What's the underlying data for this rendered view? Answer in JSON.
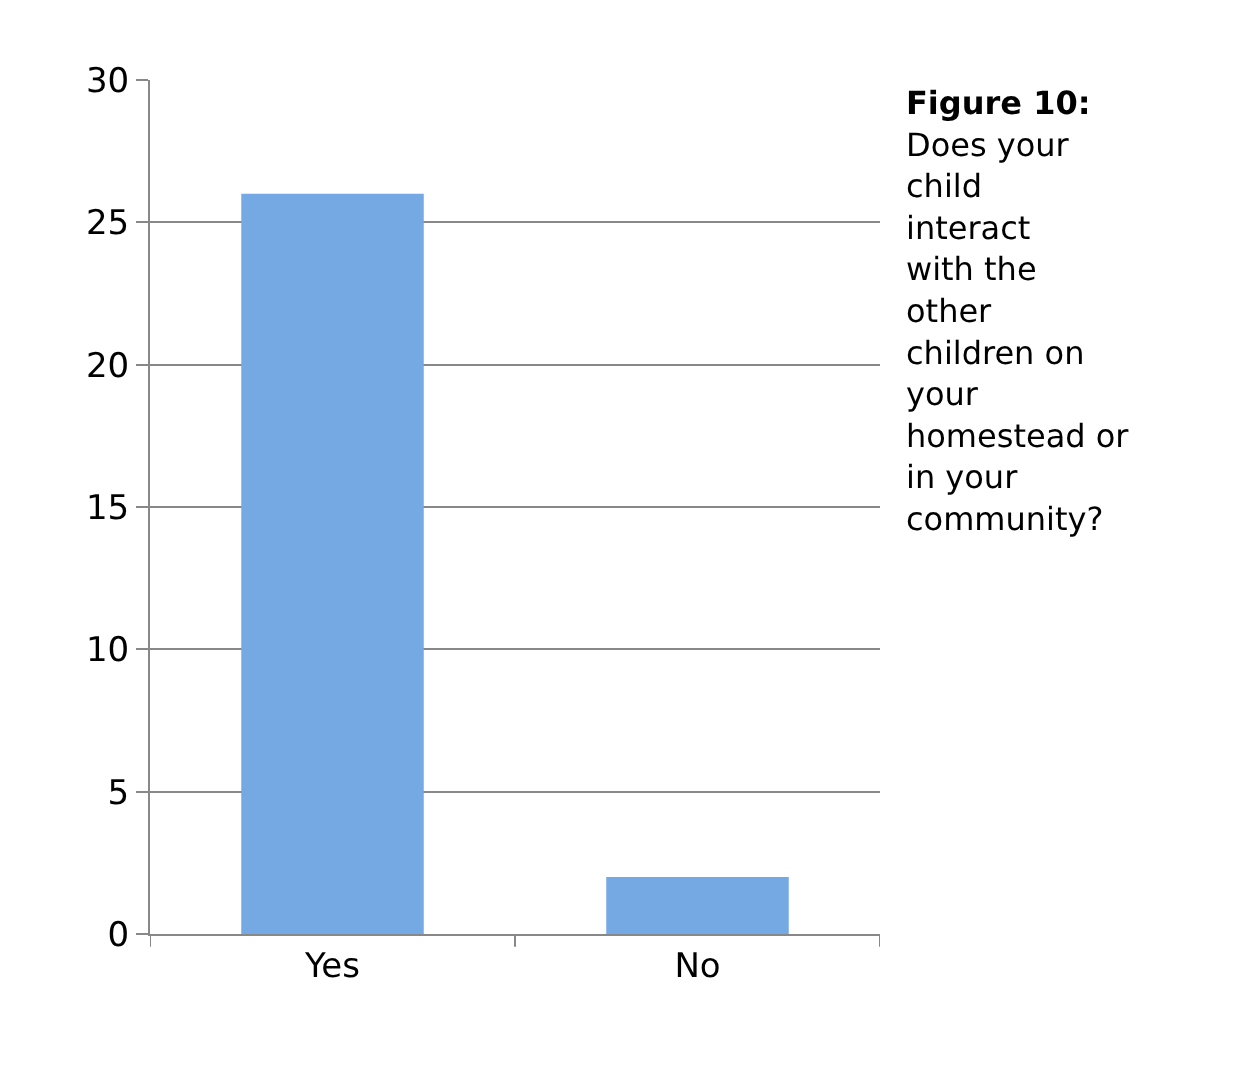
{
  "chart_data": {
    "type": "bar",
    "title": "Figure 10:",
    "subtitle": "Does your child interact with the other children on your homestead or in your community?",
    "categories": [
      "Yes",
      "No"
    ],
    "values": [
      26,
      2
    ],
    "color": "#74a9e4",
    "ylim": [
      0,
      30
    ],
    "yticks": [
      0,
      5,
      10,
      15,
      20,
      25,
      30
    ],
    "grid": "y",
    "legend": false
  }
}
